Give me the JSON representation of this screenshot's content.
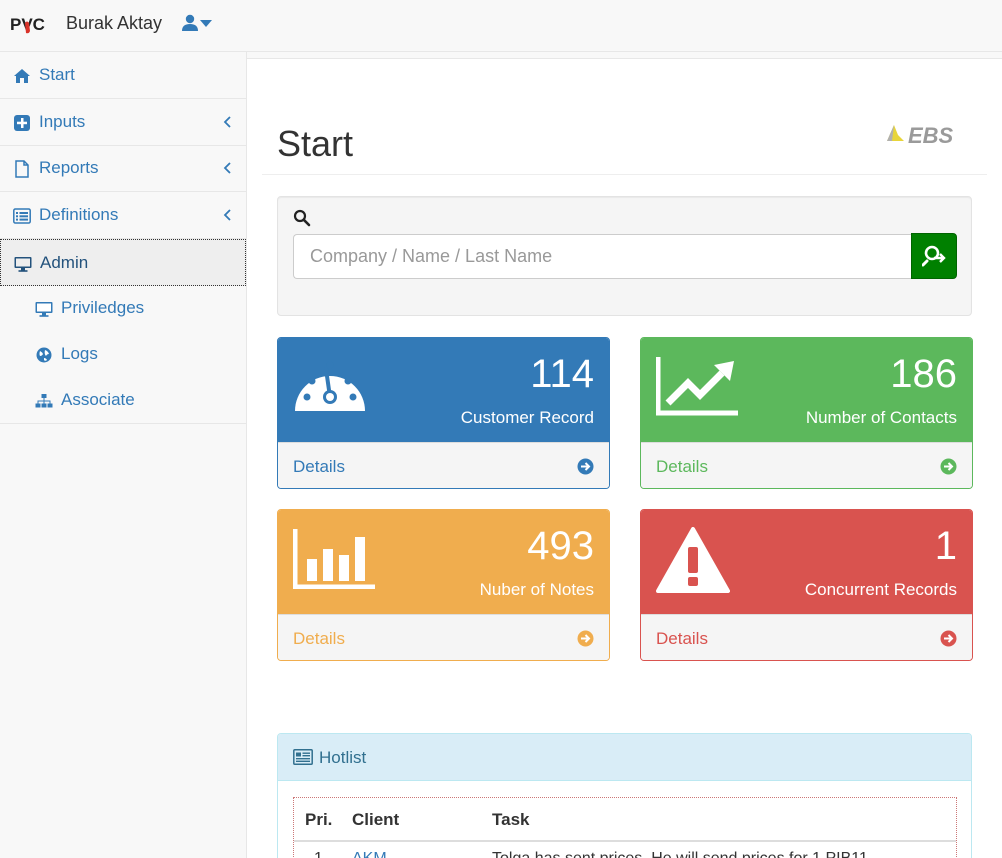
{
  "navbar": {
    "brand": "PVC",
    "user_name": "Burak Aktay"
  },
  "sidebar": {
    "items": [
      {
        "label": "Start",
        "icon": "home-icon"
      },
      {
        "label": "Inputs",
        "icon": "plus-square-icon"
      },
      {
        "label": "Reports",
        "icon": "file-icon"
      },
      {
        "label": "Definitions",
        "icon": "list-alt-icon"
      },
      {
        "label": "Admin",
        "icon": "desktop-icon",
        "active": true
      }
    ],
    "sub_items": [
      {
        "label": "Priviledges",
        "icon": "desktop-icon"
      },
      {
        "label": "Logs",
        "icon": "globe-icon"
      },
      {
        "label": "Associate",
        "icon": "sitemap-icon"
      }
    ]
  },
  "page": {
    "title": "Start",
    "logo_text": "EBS"
  },
  "search": {
    "placeholder": "Company / Name / Last Name"
  },
  "stats": [
    {
      "value": "114",
      "caption": "Customer Record",
      "details": "Details",
      "color": "#337ab7",
      "icon": "dashboard-icon"
    },
    {
      "value": "186",
      "caption": "Number of Contacts",
      "details": "Details",
      "color": "#5cb85c",
      "icon": "line-chart-icon"
    },
    {
      "value": "493",
      "caption": "Nuber of Notes",
      "details": "Details",
      "color": "#f0ad4e",
      "icon": "bar-chart-icon"
    },
    {
      "value": "1",
      "caption": "Concurrent Records",
      "details": "Details",
      "color": "#d9534f",
      "icon": "warning-icon"
    }
  ],
  "hotlist": {
    "title": "Hotlist",
    "columns": [
      "Pri.",
      "Client",
      "Task"
    ],
    "rows": [
      {
        "pri": "1",
        "client": "AKM",
        "task": "Tolga has sent prices. He will send prices for 1 PIB11"
      }
    ]
  }
}
